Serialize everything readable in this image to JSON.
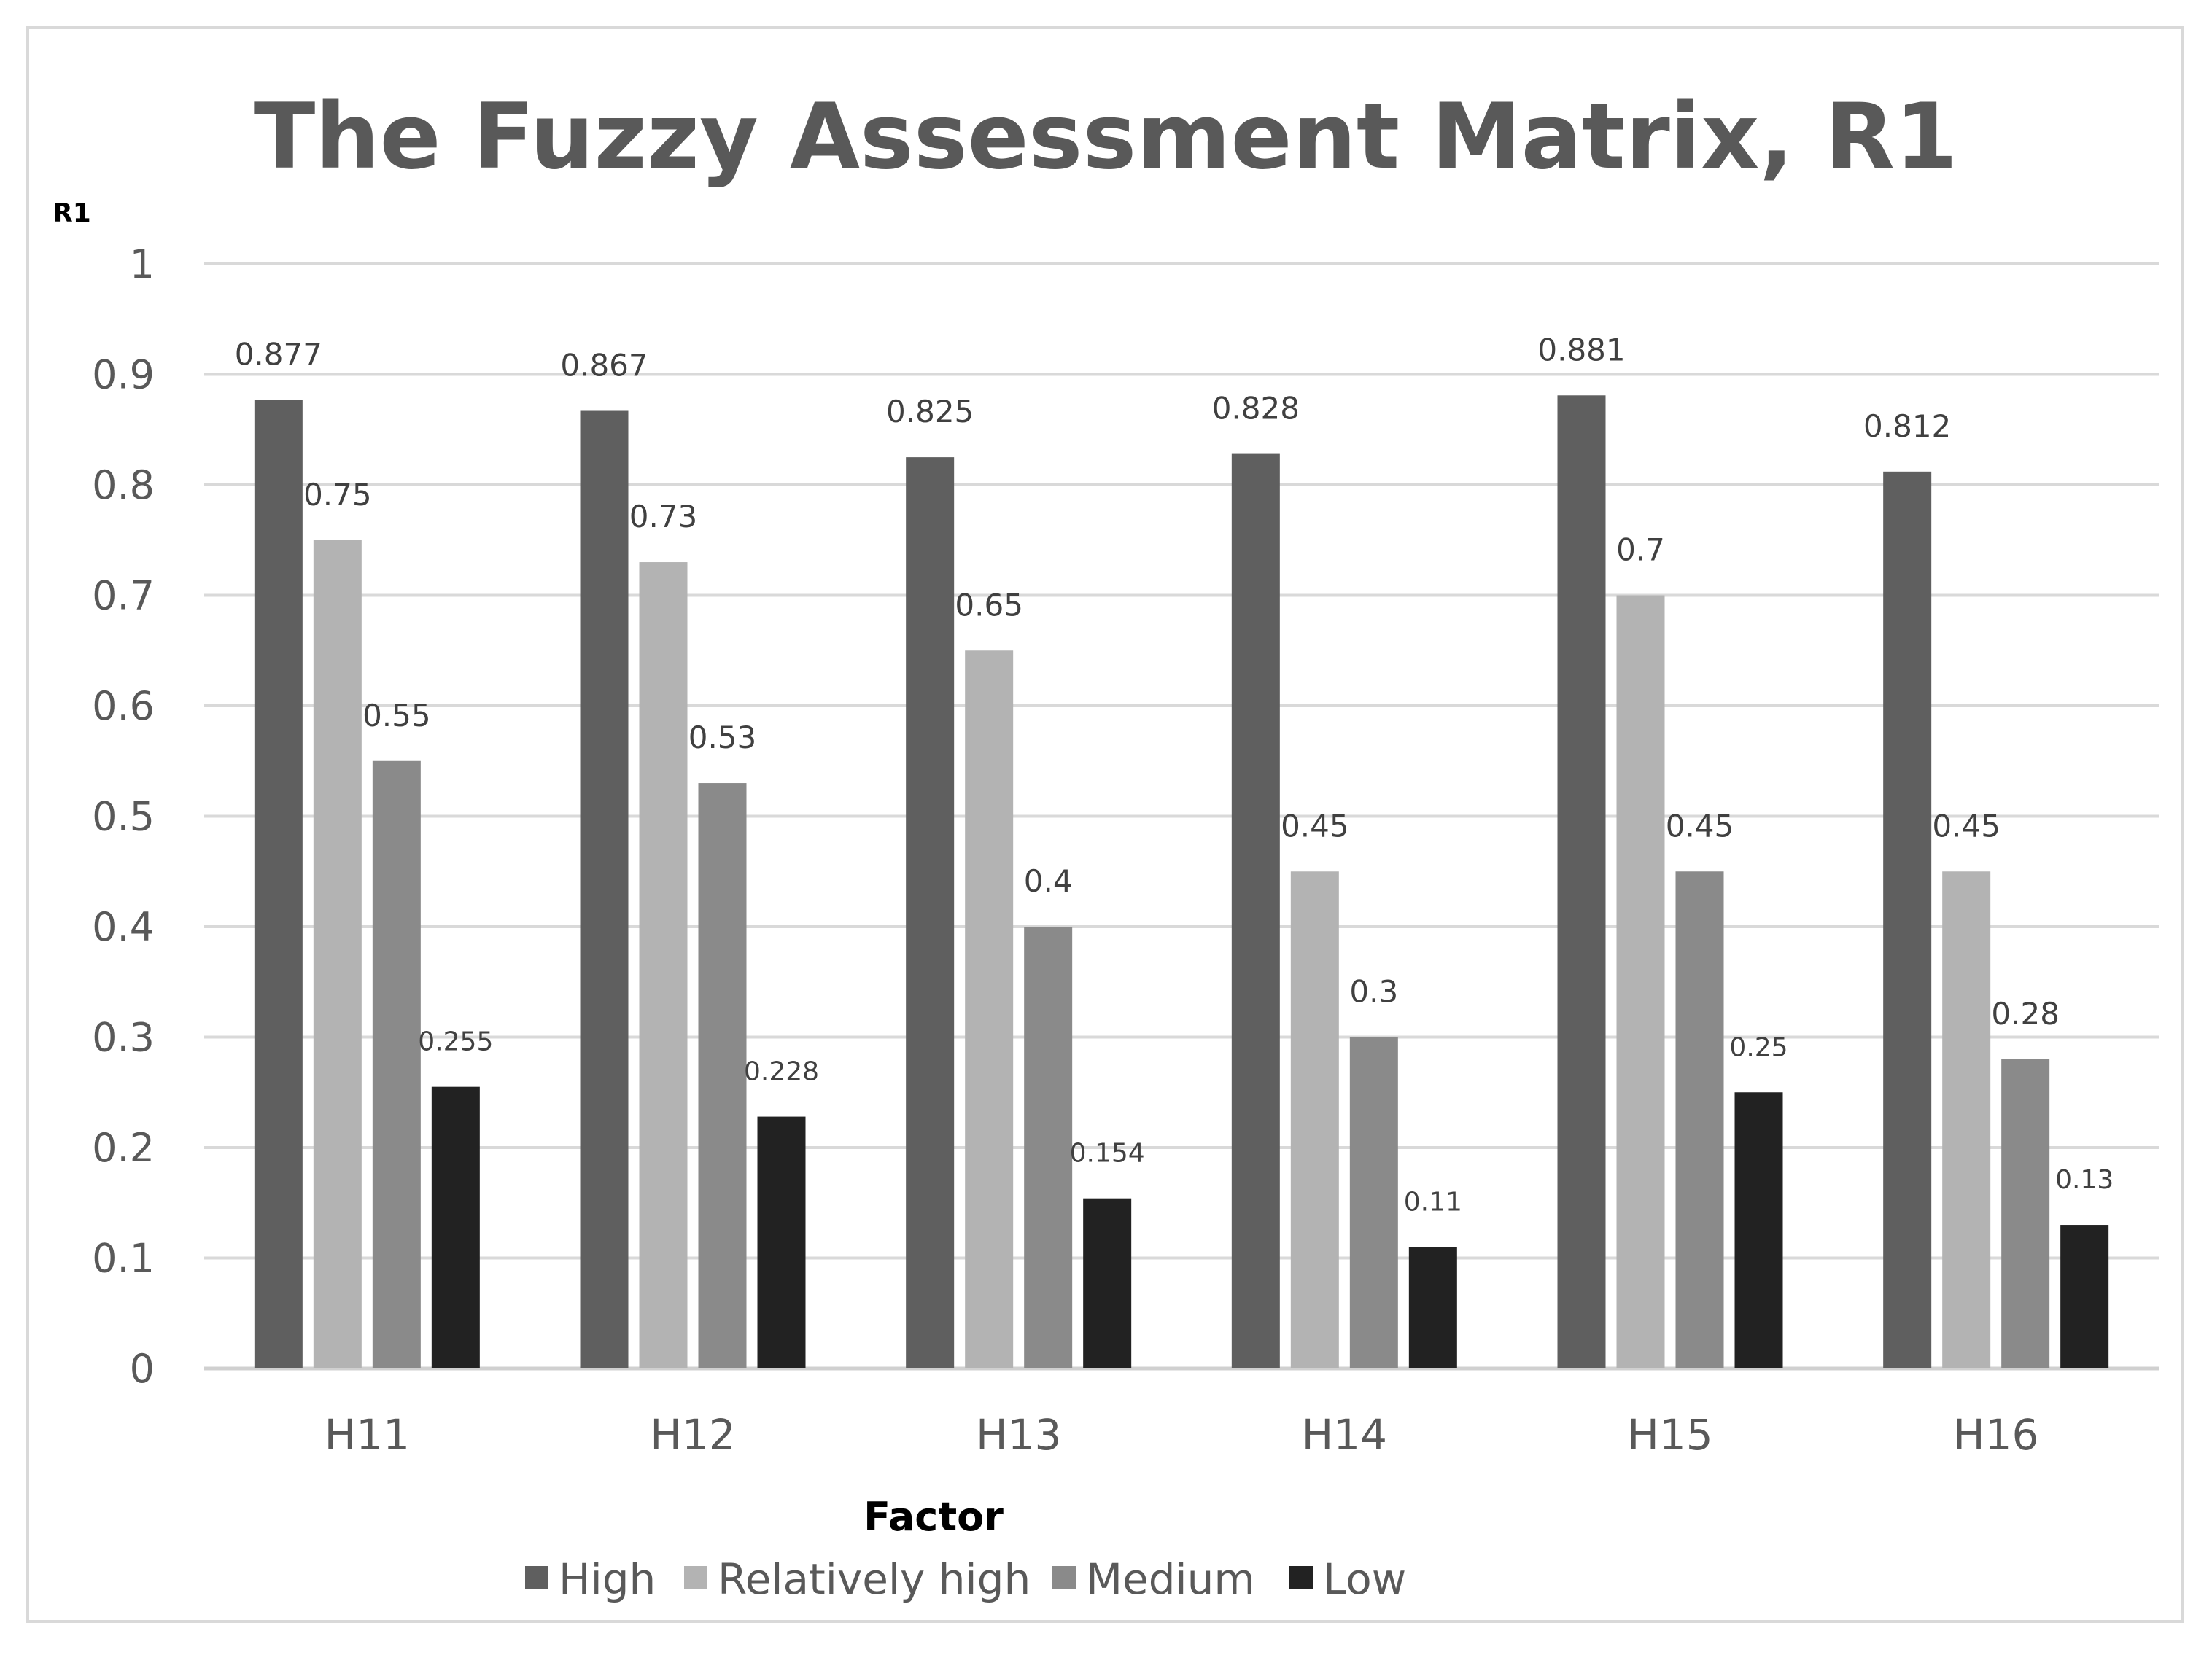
{
  "chart_data": {
    "type": "bar",
    "title": "The Fuzzy Assessment Matrix, R1",
    "xlabel": "Factor",
    "ylabel": "R1",
    "ylim": [
      0,
      1
    ],
    "yticks": [
      "0",
      "0.1",
      "0.2",
      "0.3",
      "0.4",
      "0.5",
      "0.6",
      "0.7",
      "0.8",
      "0.9",
      "1"
    ],
    "grid": true,
    "legend_position": "bottom",
    "categories": [
      "H11",
      "H12",
      "H13",
      "H14",
      "H15",
      "H16"
    ],
    "series": [
      {
        "name": "High",
        "color": "#5f5f5f",
        "values": [
          0.877,
          0.867,
          0.825,
          0.828,
          0.881,
          0.812
        ],
        "labels": [
          "0.877",
          "0.867",
          "0.825",
          "0.828",
          "0.881",
          "0.812"
        ]
      },
      {
        "name": "Relatively high",
        "color": "#b3b3b3",
        "values": [
          0.75,
          0.73,
          0.65,
          0.45,
          0.7,
          0.45
        ],
        "labels": [
          "0.75",
          "0.73",
          "0.65",
          "0.45",
          "0.7",
          "0.45"
        ]
      },
      {
        "name": "Medium",
        "color": "#8a8a8a",
        "values": [
          0.55,
          0.53,
          0.4,
          0.3,
          0.45,
          0.28
        ],
        "labels": [
          "0.55",
          "0.53",
          "0.4",
          "0.3",
          "0.45",
          "0.28"
        ]
      },
      {
        "name": "Low",
        "color": "#222222",
        "values": [
          0.255,
          0.228,
          0.154,
          0.11,
          0.25,
          0.13
        ],
        "labels": [
          "0.255",
          "0.228",
          "0.154",
          "0.11",
          "0.25",
          "0.13"
        ]
      }
    ]
  }
}
